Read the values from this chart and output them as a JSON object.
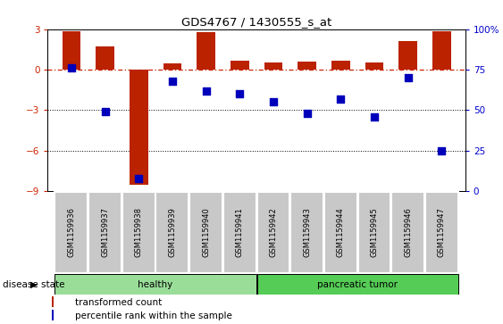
{
  "title": "GDS4767 / 1430555_s_at",
  "samples": [
    "GSM1159936",
    "GSM1159937",
    "GSM1159938",
    "GSM1159939",
    "GSM1159940",
    "GSM1159941",
    "GSM1159942",
    "GSM1159943",
    "GSM1159944",
    "GSM1159945",
    "GSM1159946",
    "GSM1159947"
  ],
  "transformed_counts": [
    2.85,
    1.7,
    -8.5,
    0.45,
    2.75,
    0.65,
    0.5,
    0.6,
    0.65,
    0.5,
    2.1,
    2.85
  ],
  "percentile_ranks": [
    76,
    49,
    8,
    68,
    62,
    60,
    55,
    48,
    57,
    46,
    70,
    25
  ],
  "ylim_left": [
    -9,
    3
  ],
  "ylim_right": [
    0,
    100
  ],
  "yticks_left": [
    -9,
    -6,
    -3,
    0,
    3
  ],
  "yticks_right": [
    0,
    25,
    50,
    75,
    100
  ],
  "ytick_labels_right": [
    "0",
    "25",
    "50",
    "75",
    "100%"
  ],
  "bar_color": "#bb2200",
  "dot_color": "#0000bb",
  "hline_y": 0,
  "hline_color": "#cc2200",
  "hline_style": "-.",
  "dotline_y": [
    -3,
    -6
  ],
  "dotline_color": "black",
  "dotline_style": ":",
  "healthy_label": "healthy",
  "tumor_label": "pancreatic tumor",
  "healthy_color": "#99dd99",
  "tumor_color": "#55cc55",
  "disease_state_label": "disease state",
  "legend_bar_label": "transformed count",
  "legend_dot_label": "percentile rank within the sample",
  "bar_width": 0.55,
  "label_band_color": "#c8c8c8",
  "tick_label_color_left": "#cc2200",
  "tick_label_color_right": "#0000cc"
}
